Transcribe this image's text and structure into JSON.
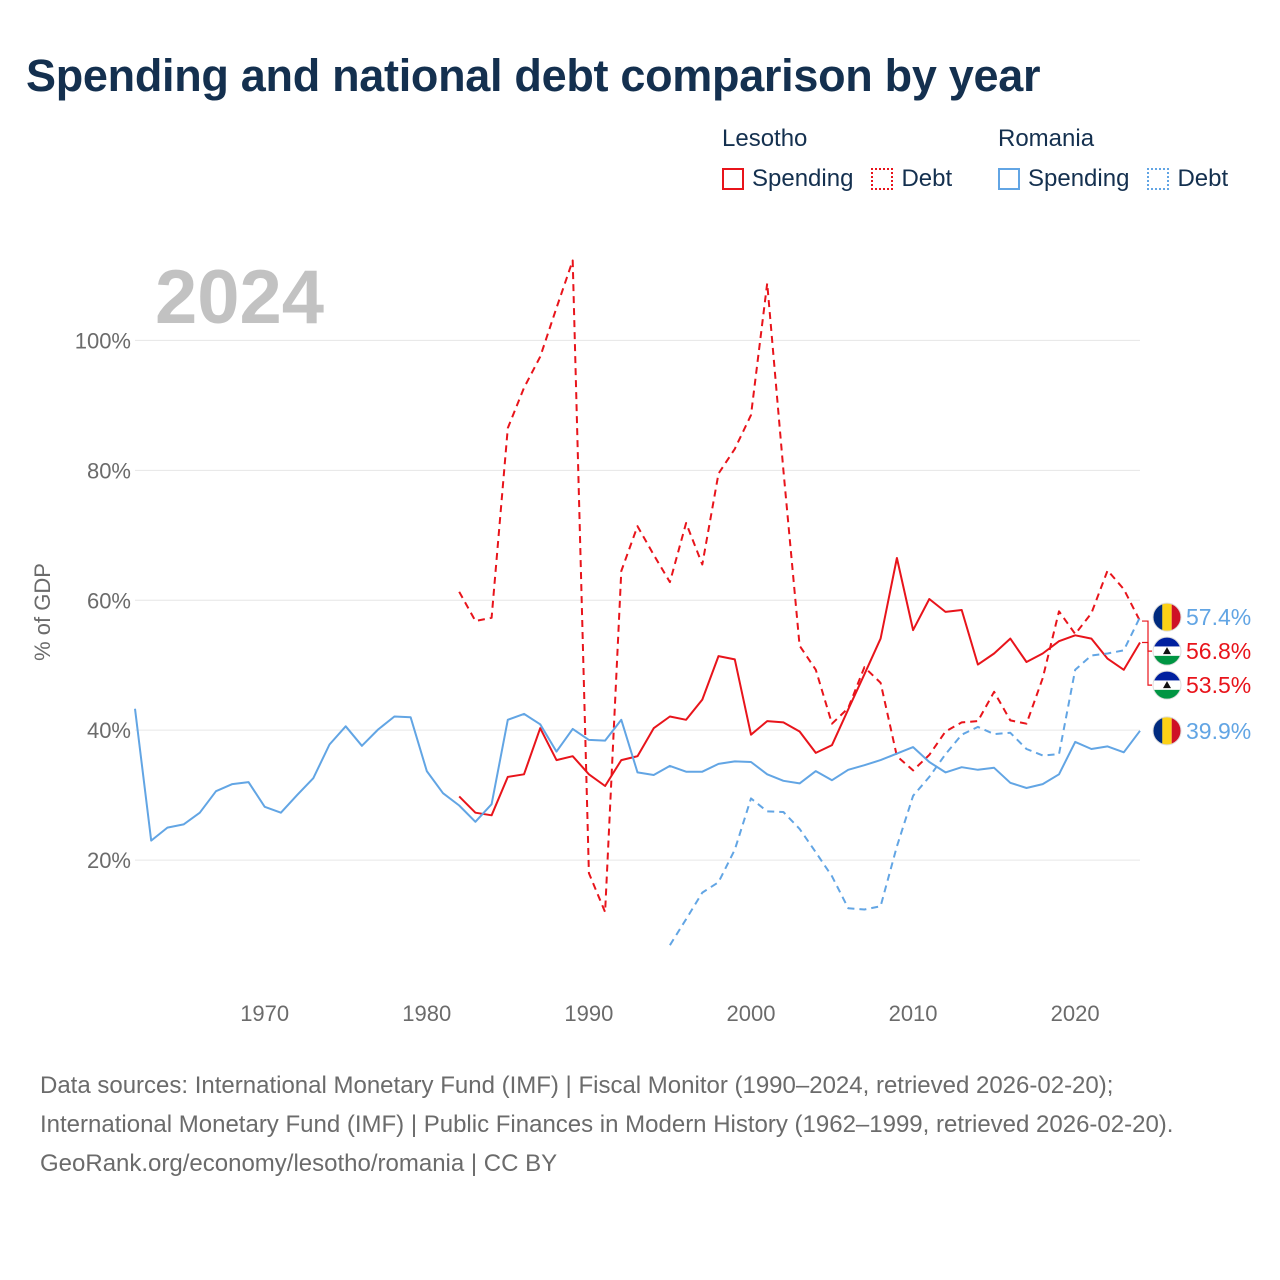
{
  "title": "Spending and national debt comparison by year",
  "year": "2024",
  "legend": {
    "groups": [
      {
        "name": "Lesotho",
        "color": "#e8141b",
        "items": [
          {
            "label": "Spending",
            "style": "solid"
          },
          {
            "label": "Debt",
            "style": "dotted"
          }
        ]
      },
      {
        "name": "Romania",
        "color": "#62a5e4",
        "items": [
          {
            "label": "Spending",
            "style": "solid"
          },
          {
            "label": "Debt",
            "style": "dotted"
          }
        ]
      }
    ]
  },
  "footer": {
    "sources": "Data sources: International Monetary Fund (IMF) | Fiscal Monitor (1990–2024, retrieved 2026-02-20); International Monetary Fund (IMF) | Public Finances in Modern History (1962–1999, retrieved 2026-02-20).",
    "credit": "GeoRank.org/economy/lesotho/romania | CC BY"
  },
  "chart_data": {
    "type": "line",
    "title": "Spending and national debt comparison by year",
    "xlabel": "",
    "ylabel": "% of GDP",
    "xlim": [
      1962,
      2024
    ],
    "ylim": [
      0,
      117
    ],
    "grid": true,
    "x_ticks": [
      1970,
      1980,
      1990,
      2000,
      2010,
      2020
    ],
    "y_ticks": [
      {
        "value": 20,
        "label": "20%"
      },
      {
        "value": 40,
        "label": "40%"
      },
      {
        "value": 60,
        "label": "60%"
      },
      {
        "value": 80,
        "label": "80%"
      },
      {
        "value": 100,
        "label": "100%"
      }
    ],
    "series": [
      {
        "name": "Lesotho Debt",
        "country": "Lesotho",
        "measure": "Debt",
        "color": "#e8141b",
        "dash": "dashed",
        "x": [
          1982,
          1983,
          1984,
          1985,
          1986,
          1987,
          1988,
          1989,
          1990,
          1991,
          1992,
          1993,
          1994,
          1995,
          1996,
          1997,
          1998,
          1999,
          2000,
          2001,
          2002,
          2003,
          2004,
          2005,
          2006,
          2007,
          2008,
          2009,
          2010,
          2011,
          2012,
          2013,
          2014,
          2015,
          2016,
          2017,
          2018,
          2019,
          2020,
          2021,
          2022,
          2023,
          2024
        ],
        "y": [
          61.3,
          56.8,
          57.3,
          86.5,
          92.7,
          97.5,
          105.0,
          112.3,
          18.0,
          12.0,
          64.5,
          71.4,
          67.0,
          62.8,
          71.9,
          65.5,
          79.5,
          83.3,
          88.5,
          108.8,
          80.0,
          53.0,
          49.3,
          41.0,
          43.4,
          49.7,
          47.3,
          36.0,
          33.8,
          36.2,
          39.8,
          41.2,
          41.4,
          45.9,
          41.5,
          41.0,
          48.0,
          58.3,
          54.8,
          58.0,
          64.6,
          61.7,
          56.8
        ]
      },
      {
        "name": "Lesotho Spending",
        "country": "Lesotho",
        "measure": "Spending",
        "color": "#e8141b",
        "dash": "solid",
        "x": [
          1982,
          1983,
          1984,
          1985,
          1986,
          1987,
          1988,
          1989,
          1990,
          1991,
          1992,
          1993,
          1994,
          1995,
          1996,
          1997,
          1998,
          1999,
          2000,
          2001,
          2002,
          2003,
          2004,
          2005,
          2006,
          2007,
          2008,
          2009,
          2010,
          2011,
          2012,
          2013,
          2014,
          2015,
          2016,
          2017,
          2018,
          2019,
          2020,
          2021,
          2022,
          2023,
          2024
        ],
        "y": [
          29.8,
          27.3,
          26.9,
          32.8,
          33.2,
          40.3,
          35.4,
          36.0,
          33.2,
          31.4,
          35.4,
          36.0,
          40.3,
          42.1,
          41.6,
          44.7,
          51.4,
          50.9,
          39.3,
          41.4,
          41.2,
          39.8,
          36.5,
          37.7,
          43.2,
          48.6,
          54.1,
          66.5,
          55.4,
          60.2,
          58.2,
          58.5,
          50.1,
          51.8,
          54.1,
          50.5,
          51.8,
          53.7,
          54.6,
          54.1,
          51.0,
          49.3,
          53.5
        ]
      },
      {
        "name": "Romania Spending",
        "country": "Romania",
        "measure": "Spending",
        "color": "#62a5e4",
        "dash": "solid",
        "x": [
          1962,
          1963,
          1964,
          1965,
          1966,
          1967,
          1968,
          1969,
          1970,
          1971,
          1972,
          1973,
          1974,
          1975,
          1976,
          1977,
          1978,
          1979,
          1980,
          1981,
          1982,
          1983,
          1984,
          1985,
          1986,
          1987,
          1988,
          1989,
          1990,
          1991,
          1992,
          1993,
          1994,
          1995,
          1996,
          1997,
          1998,
          1999,
          2000,
          2001,
          2002,
          2003,
          2004,
          2005,
          2006,
          2007,
          2008,
          2009,
          2010,
          2011,
          2012,
          2013,
          2014,
          2015,
          2016,
          2017,
          2018,
          2019,
          2020,
          2021,
          2022,
          2023,
          2024
        ],
        "y": [
          43.3,
          23.0,
          25.0,
          25.5,
          27.3,
          30.6,
          31.7,
          32.0,
          28.2,
          27.3,
          30.0,
          32.6,
          37.8,
          40.6,
          37.6,
          40.1,
          42.1,
          42.0,
          33.7,
          30.3,
          28.4,
          25.9,
          28.6,
          41.6,
          42.5,
          40.9,
          36.7,
          40.2,
          38.5,
          38.4,
          41.6,
          33.5,
          33.1,
          34.5,
          33.6,
          33.6,
          34.8,
          35.2,
          35.1,
          33.2,
          32.2,
          31.8,
          33.7,
          32.3,
          33.9,
          34.6,
          35.4,
          36.4,
          37.4,
          35.1,
          33.5,
          34.3,
          33.9,
          34.2,
          31.9,
          31.1,
          31.7,
          33.2,
          38.2,
          37.1,
          37.5,
          36.6,
          39.9
        ]
      },
      {
        "name": "Romania Debt",
        "country": "Romania",
        "measure": "Debt",
        "color": "#62a5e4",
        "dash": "dashed",
        "x": [
          1995,
          1996,
          1997,
          1998,
          1999,
          2000,
          2001,
          2002,
          2003,
          2004,
          2005,
          2006,
          2007,
          2008,
          2009,
          2010,
          2011,
          2012,
          2013,
          2014,
          2015,
          2016,
          2017,
          2018,
          2019,
          2020,
          2021,
          2022,
          2023,
          2024
        ],
        "y": [
          6.9,
          10.9,
          15.0,
          16.6,
          21.6,
          29.5,
          27.5,
          27.4,
          24.8,
          21.2,
          17.5,
          12.6,
          12.4,
          12.9,
          22.1,
          29.9,
          32.8,
          36.3,
          39.3,
          40.5,
          39.4,
          39.6,
          37.1,
          36.1,
          36.3,
          49.3,
          51.5,
          51.8,
          52.3,
          57.4
        ]
      }
    ],
    "end_labels": [
      {
        "label": "57.4%",
        "series": "Romania Debt",
        "flag": "Romania"
      },
      {
        "label": "56.8%",
        "series": "Lesotho Debt",
        "flag": "Lesotho"
      },
      {
        "label": "53.5%",
        "series": "Lesotho Spending",
        "flag": "Lesotho"
      },
      {
        "label": "39.9%",
        "series": "Romania Spending",
        "flag": "Romania"
      }
    ]
  }
}
